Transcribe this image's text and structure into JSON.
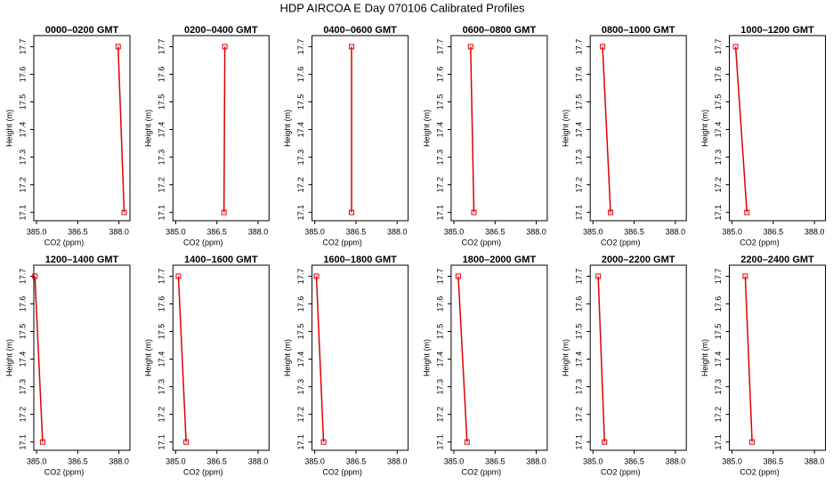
{
  "title": "HDP AIRCOA E  Day 070106  Calibrated Profiles",
  "chart_data": [
    {
      "type": "line",
      "title": "0000–0200 GMT",
      "x_label": "CO2 (ppm)",
      "y_label": "Height (m)",
      "x": [
        388.19,
        387.97
      ],
      "values": [
        17.1,
        17.7
      ],
      "color": "#dd0000",
      "xlim": [
        384.9,
        388.4
      ],
      "ylim": [
        17.07,
        17.74
      ],
      "xticks": [
        {
          "value": 385,
          "label": "385.0"
        },
        386.5,
        {
          "value": 388,
          "label": "388.0"
        }
      ],
      "yticks": [
        17.1,
        17.2,
        17.3,
        17.4,
        17.5,
        17.6,
        17.7
      ]
    },
    {
      "type": "line",
      "title": "0200–0400 GMT",
      "x_label": "CO2 (ppm)",
      "y_label": "Height (m)",
      "x": [
        386.76,
        386.79
      ],
      "values": [
        17.1,
        17.7
      ],
      "color": "#dd0000",
      "xlim": [
        384.9,
        388.4
      ],
      "ylim": [
        17.07,
        17.74
      ],
      "xticks": [
        {
          "value": 385,
          "label": "385.0"
        },
        386.5,
        {
          "value": 388,
          "label": "388.0"
        }
      ],
      "yticks": [
        17.1,
        17.2,
        17.3,
        17.4,
        17.5,
        17.6,
        17.7
      ]
    },
    {
      "type": "line",
      "title": "0400–0600 GMT",
      "x_label": "CO2 (ppm)",
      "y_label": "Height (m)",
      "x": [
        386.34,
        386.34
      ],
      "values": [
        17.1,
        17.7
      ],
      "color": "#dd0000",
      "xlim": [
        384.9,
        388.4
      ],
      "ylim": [
        17.07,
        17.74
      ],
      "xticks": [
        {
          "value": 385,
          "label": "385.0"
        },
        386.5,
        {
          "value": 388,
          "label": "388.0"
        }
      ],
      "yticks": [
        17.1,
        17.2,
        17.3,
        17.4,
        17.5,
        17.6,
        17.7
      ]
    },
    {
      "type": "line",
      "title": "0600–0800 GMT",
      "x_label": "CO2 (ppm)",
      "y_label": "Height (m)",
      "x": [
        385.73,
        385.61
      ],
      "values": [
        17.1,
        17.7
      ],
      "color": "#dd0000",
      "xlim": [
        384.9,
        388.4
      ],
      "ylim": [
        17.07,
        17.74
      ],
      "xticks": [
        {
          "value": 385,
          "label": "385.0"
        },
        386.5,
        {
          "value": 388,
          "label": "388.0"
        }
      ],
      "yticks": [
        17.1,
        17.2,
        17.3,
        17.4,
        17.5,
        17.6,
        17.7
      ]
    },
    {
      "type": "line",
      "title": "0800–1000 GMT",
      "x_label": "CO2 (ppm)",
      "y_label": "Height (m)",
      "x": [
        385.64,
        385.35
      ],
      "values": [
        17.1,
        17.7
      ],
      "color": "#dd0000",
      "xlim": [
        384.9,
        388.4
      ],
      "ylim": [
        17.07,
        17.74
      ],
      "xticks": [
        {
          "value": 385,
          "label": "385.0"
        },
        386.5,
        {
          "value": 388,
          "label": "388.0"
        }
      ],
      "yticks": [
        17.1,
        17.2,
        17.3,
        17.4,
        17.5,
        17.6,
        17.7
      ]
    },
    {
      "type": "line",
      "title": "1000–1200 GMT",
      "x_label": "CO2 (ppm)",
      "y_label": "Height (m)",
      "x": [
        385.54,
        385.13
      ],
      "values": [
        17.1,
        17.7
      ],
      "color": "#dd0000",
      "xlim": [
        384.9,
        388.4
      ],
      "ylim": [
        17.07,
        17.74
      ],
      "xticks": [
        {
          "value": 385,
          "label": "385.0"
        },
        386.5,
        {
          "value": 388,
          "label": "388.0"
        }
      ],
      "yticks": [
        17.1,
        17.2,
        17.3,
        17.4,
        17.5,
        17.6,
        17.7
      ]
    },
    {
      "type": "line",
      "title": "1200–1400 GMT",
      "x_label": "CO2 (ppm)",
      "y_label": "Height (m)",
      "x": [
        385.22,
        384.94
      ],
      "values": [
        17.1,
        17.7
      ],
      "color": "#dd0000",
      "xlim": [
        384.9,
        388.4
      ],
      "ylim": [
        17.07,
        17.74
      ],
      "xticks": [
        {
          "value": 385,
          "label": "385.0"
        },
        386.5,
        {
          "value": 388,
          "label": "388.0"
        }
      ],
      "yticks": [
        17.1,
        17.2,
        17.3,
        17.4,
        17.5,
        17.6,
        17.7
      ]
    },
    {
      "type": "line",
      "title": "1400–1600 GMT",
      "x_label": "CO2 (ppm)",
      "y_label": "Height (m)",
      "x": [
        385.38,
        385.1
      ],
      "values": [
        17.1,
        17.7
      ],
      "color": "#dd0000",
      "xlim": [
        384.9,
        388.4
      ],
      "ylim": [
        17.07,
        17.74
      ],
      "xticks": [
        {
          "value": 385,
          "label": "385.0"
        },
        386.5,
        {
          "value": 388,
          "label": "388.0"
        }
      ],
      "yticks": [
        17.1,
        17.2,
        17.3,
        17.4,
        17.5,
        17.6,
        17.7
      ]
    },
    {
      "type": "line",
      "title": "1600–1800 GMT",
      "x_label": "CO2 (ppm)",
      "y_label": "Height (m)",
      "x": [
        385.32,
        385.06
      ],
      "values": [
        17.1,
        17.7
      ],
      "color": "#dd0000",
      "xlim": [
        384.9,
        388.4
      ],
      "ylim": [
        17.07,
        17.74
      ],
      "xticks": [
        {
          "value": 385,
          "label": "385.0"
        },
        386.5,
        {
          "value": 388,
          "label": "388.0"
        }
      ],
      "yticks": [
        17.1,
        17.2,
        17.3,
        17.4,
        17.5,
        17.6,
        17.7
      ]
    },
    {
      "type": "line",
      "title": "1800–2000 GMT",
      "x_label": "CO2 (ppm)",
      "y_label": "Height (m)",
      "x": [
        385.48,
        385.16
      ],
      "values": [
        17.1,
        17.7
      ],
      "color": "#dd0000",
      "xlim": [
        384.9,
        388.4
      ],
      "ylim": [
        17.07,
        17.74
      ],
      "xticks": [
        {
          "value": 385,
          "label": "385.0"
        },
        386.5,
        {
          "value": 388,
          "label": "388.0"
        }
      ],
      "yticks": [
        17.1,
        17.2,
        17.3,
        17.4,
        17.5,
        17.6,
        17.7
      ]
    },
    {
      "type": "line",
      "title": "2000–2200 GMT",
      "x_label": "CO2 (ppm)",
      "y_label": "Height (m)",
      "x": [
        385.42,
        385.19
      ],
      "values": [
        17.1,
        17.7
      ],
      "color": "#dd0000",
      "xlim": [
        384.9,
        388.4
      ],
      "ylim": [
        17.07,
        17.74
      ],
      "xticks": [
        {
          "value": 385,
          "label": "385.0"
        },
        386.5,
        {
          "value": 388,
          "label": "388.0"
        }
      ],
      "yticks": [
        17.1,
        17.2,
        17.3,
        17.4,
        17.5,
        17.6,
        17.7
      ]
    },
    {
      "type": "line",
      "title": "2200–2400 GMT",
      "x_label": "CO2 (ppm)",
      "y_label": "Height (m)",
      "x": [
        385.73,
        385.48
      ],
      "values": [
        17.1,
        17.7
      ],
      "color": "#dd0000",
      "xlim": [
        384.9,
        388.4
      ],
      "ylim": [
        17.07,
        17.74
      ],
      "xticks": [
        {
          "value": 385,
          "label": "385.0"
        },
        386.5,
        {
          "value": 388,
          "label": "388.0"
        }
      ],
      "yticks": [
        17.1,
        17.2,
        17.3,
        17.4,
        17.5,
        17.6,
        17.7
      ]
    }
  ]
}
